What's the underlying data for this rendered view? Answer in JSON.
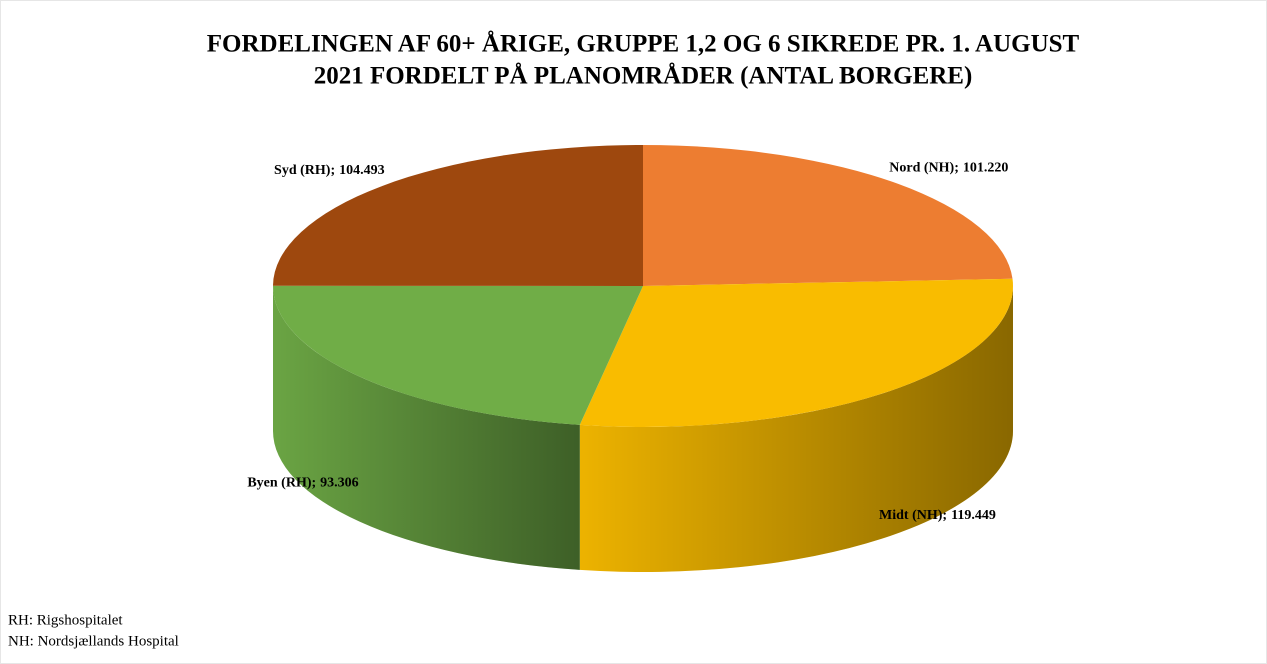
{
  "chart_data": {
    "type": "pie3d",
    "title": [
      "FORDELINGEN AF 60+ ÅRIGE, GRUPPE 1,2 OG 6 SIKREDE PR. 1. AUGUST",
      "2021 FORDELT PÅ PLANOMRÅDER (ANTAL BORGERE)"
    ],
    "categories": [
      "Nord (NH);",
      "Midt (NH);",
      "Byen (RH);",
      "Syd (RH);"
    ],
    "values": [
      101220,
      119449,
      93306,
      104493
    ],
    "value_labels": [
      "101.220",
      "119.449",
      "93.306",
      "104.493"
    ],
    "colors": [
      "#ED7D31",
      "#F9BC00",
      "#70AD47",
      "#9E480E"
    ],
    "notes": [
      "RH: Rigshospitalet",
      "NH: Nordsjællands Hospital"
    ]
  }
}
